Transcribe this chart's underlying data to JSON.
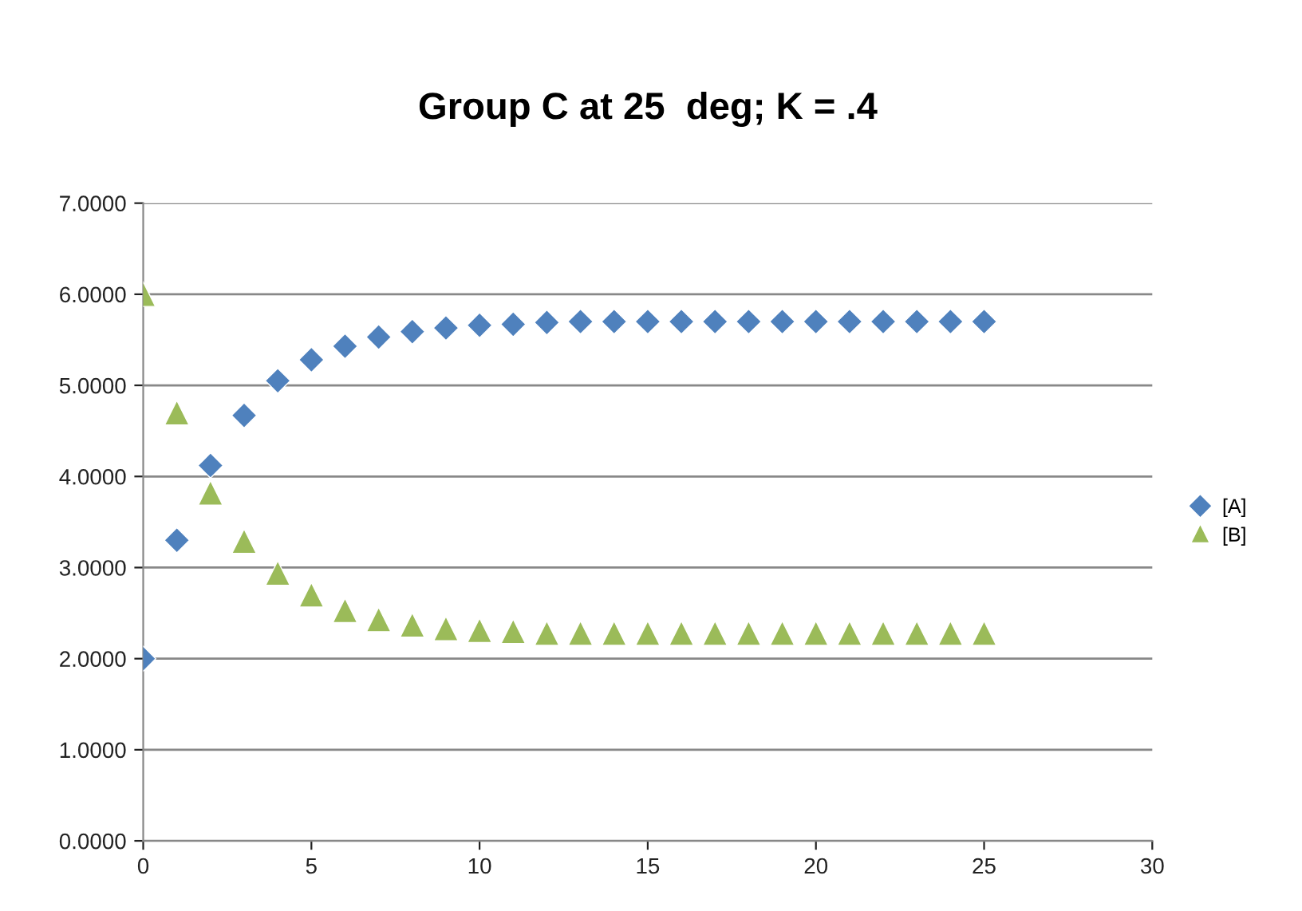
{
  "chart_data": {
    "type": "scatter",
    "title": "Group C at 25  deg; K = .4",
    "x": [
      0,
      1,
      2,
      3,
      4,
      5,
      6,
      7,
      8,
      9,
      10,
      11,
      12,
      13,
      14,
      15,
      16,
      17,
      18,
      19,
      20,
      21,
      22,
      23,
      24,
      25
    ],
    "series": [
      {
        "name": "[A]",
        "color": "#4f81bd",
        "marker": "diamond",
        "values": [
          2.0,
          3.3,
          4.12,
          4.67,
          5.05,
          5.28,
          5.43,
          5.53,
          5.59,
          5.63,
          5.66,
          5.67,
          5.69,
          5.7,
          5.7,
          5.7,
          5.7,
          5.7,
          5.7,
          5.7,
          5.7,
          5.7,
          5.7,
          5.7,
          5.7,
          5.7
        ]
      },
      {
        "name": "[B]",
        "color": "#9bbb59",
        "marker": "triangle",
        "values": [
          6.0,
          4.7,
          3.82,
          3.29,
          2.94,
          2.7,
          2.53,
          2.43,
          2.37,
          2.33,
          2.31,
          2.3,
          2.28,
          2.28,
          2.28,
          2.28,
          2.28,
          2.28,
          2.28,
          2.28,
          2.28,
          2.28,
          2.28,
          2.28,
          2.28,
          2.28
        ]
      }
    ],
    "xlim": [
      0,
      30
    ],
    "xticks": [
      0,
      5,
      10,
      15,
      20,
      25,
      30
    ],
    "ylim": [
      0,
      7
    ],
    "yticks": [
      {
        "value": 0,
        "label": "0.0000"
      },
      {
        "value": 1,
        "label": "1.0000"
      },
      {
        "value": 2,
        "label": "2.0000"
      },
      {
        "value": 3,
        "label": "3.0000"
      },
      {
        "value": 4,
        "label": "4.0000"
      },
      {
        "value": 5,
        "label": "5.0000"
      },
      {
        "value": 6,
        "label": "6.0000"
      },
      {
        "value": 7,
        "label": "7.0000"
      }
    ],
    "grid": "y",
    "legend": "right"
  }
}
